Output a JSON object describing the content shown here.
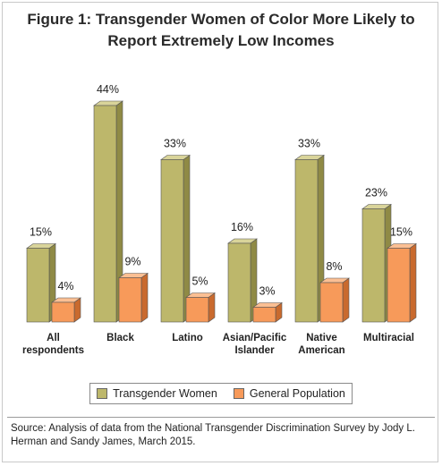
{
  "chart_data": {
    "type": "bar",
    "title_line1": "Figure 1: Transgender Women of Color More Likely to",
    "title_line2": "Report Extremely Low Incomes",
    "categories": [
      [
        "All",
        "respondents"
      ],
      [
        "Black"
      ],
      [
        "Latino"
      ],
      [
        "Asian/Pacific",
        "Islander"
      ],
      [
        "Native",
        "American"
      ],
      [
        "Multiracial"
      ]
    ],
    "series": [
      {
        "name": "Transgender Women",
        "values": [
          15,
          44,
          33,
          16,
          33,
          23
        ],
        "labels": [
          "15%",
          "44%",
          "33%",
          "16%",
          "33%",
          "23%"
        ],
        "color": "#bdb76b",
        "side_color": "#8f8a45",
        "top_color": "#d9d49a"
      },
      {
        "name": "General Population",
        "values": [
          4,
          9,
          5,
          3,
          8,
          15
        ],
        "labels": [
          "4%",
          "9%",
          "5%",
          "3%",
          "8%",
          "15%"
        ],
        "color": "#f79a5a",
        "side_color": "#c96a2e",
        "top_color": "#fbbf93"
      }
    ],
    "ylim": [
      0,
      44
    ],
    "grid": false,
    "legend_position": "bottom"
  },
  "source": "Source: Analysis of data from the National Transgender Discrimination Survey by Jody L. Herman and Sandy James, March 2015."
}
